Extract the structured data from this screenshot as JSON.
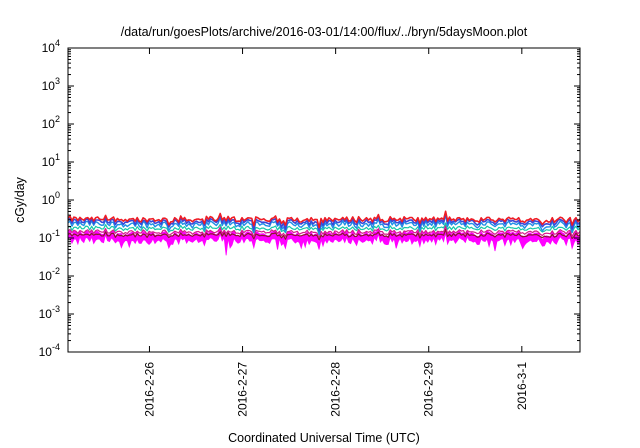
{
  "chart_data": {
    "type": "line",
    "title": "/data/run/goesPlots/archive/2016-03-01/14:00/flux/../bryn/5daysMoon.plot",
    "xlabel": "Coordinated Universal Time (UTC)",
    "ylabel": "cGy/day",
    "yscale": "log",
    "ylim": [
      0.0001,
      10000
    ],
    "y_ticks": [
      {
        "value": 0.0001,
        "base": "10",
        "exp": "-4"
      },
      {
        "value": 0.001,
        "base": "10",
        "exp": "-3"
      },
      {
        "value": 0.01,
        "base": "10",
        "exp": "-2"
      },
      {
        "value": 0.1,
        "base": "10",
        "exp": "-1"
      },
      {
        "value": 1,
        "base": "10",
        "exp": "0"
      },
      {
        "value": 10,
        "base": "10",
        "exp": "1"
      },
      {
        "value": 100,
        "base": "10",
        "exp": "2"
      },
      {
        "value": 1000,
        "base": "10",
        "exp": "3"
      },
      {
        "value": 10000,
        "base": "10",
        "exp": "4"
      }
    ],
    "xlim": [
      "2016-02-25T03:00",
      "2016-03-01T15:00"
    ],
    "x_ticks": [
      {
        "value": "2016-02-26T00:00",
        "label": "2016-2-26"
      },
      {
        "value": "2016-02-27T00:00",
        "label": "2016-2-27"
      },
      {
        "value": "2016-02-28T00:00",
        "label": "2016-2-28"
      },
      {
        "value": "2016-02-29T00:00",
        "label": "2016-2-29"
      },
      {
        "value": "2016-03-01T00:00",
        "label": "2016-3-1"
      }
    ],
    "grid": false,
    "legend": "none",
    "series": [
      {
        "color": "#ee1c25",
        "level": 0.31,
        "jitter": 0.28,
        "width": 1.6
      },
      {
        "color": "#3a47d8",
        "level": 0.27,
        "jitter": 0.32,
        "width": 1.6
      },
      {
        "color": "#1f8fe6",
        "level": 0.23,
        "jitter": 0.35,
        "width": 1.4
      },
      {
        "color": "#16c8a8",
        "level": 0.18,
        "jitter": 0.22,
        "width": 1.2
      },
      {
        "color": "#d61c8c",
        "level": 0.145,
        "jitter": 0.22,
        "width": 1.2
      },
      {
        "color": "#8b1a2a",
        "level": 0.12,
        "jitter": 0.18,
        "width": 1.2
      }
    ],
    "band": {
      "color": "#ff00ff",
      "low": 0.085,
      "high": 0.13
    }
  }
}
